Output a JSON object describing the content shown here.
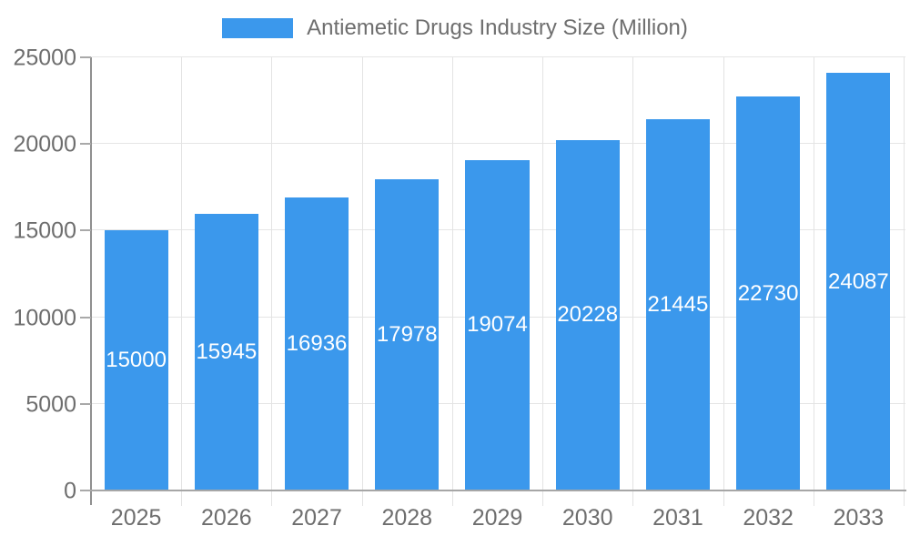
{
  "legend": {
    "label": "Antiemetic Drugs Industry Size (Million)"
  },
  "chart_data": {
    "type": "bar",
    "title": "Antiemetic Drugs Industry Size (Million)",
    "categories": [
      "2025",
      "2026",
      "2027",
      "2028",
      "2029",
      "2030",
      "2031",
      "2032",
      "2033"
    ],
    "series": [
      {
        "name": "Antiemetic Drugs Industry Size (Million)",
        "values": [
          15000,
          15945,
          16936,
          17978,
          19074,
          20228,
          21445,
          22730,
          24087
        ],
        "color": "#3b98ec"
      }
    ],
    "value_labels_visible": true,
    "xlabel": "",
    "ylabel": "",
    "ylim": [
      0,
      25000
    ],
    "y_ticks": [
      0,
      5000,
      10000,
      15000,
      20000,
      25000
    ],
    "grid": "horizontal-and-vertical",
    "legend_position": "top-center"
  },
  "colors": {
    "bar": "#3b98ec",
    "value_label_text": "#ffffff",
    "tick_text": "#6e6e6e",
    "legend_text": "#6e6e6e",
    "axis_line": "#9a9a9a",
    "gridline": "#e5e5e5",
    "background": "#ffffff"
  }
}
